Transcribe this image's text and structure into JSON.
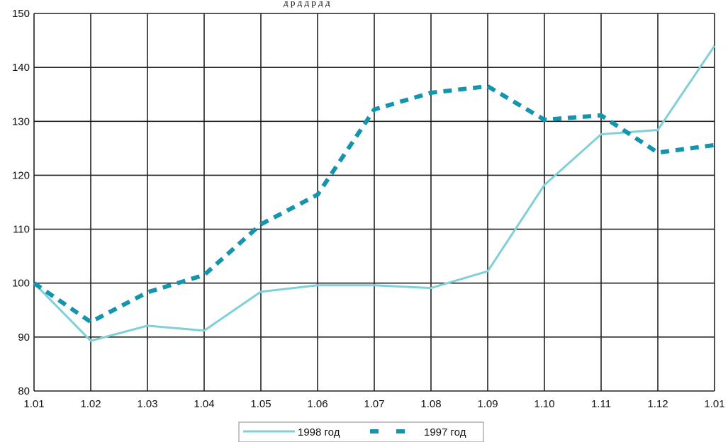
{
  "chart_data": {
    "type": "line",
    "title": "",
    "xlabel": "",
    "ylabel": "",
    "categories": [
      "1.01",
      "1.02",
      "1.03",
      "1.04",
      "1.05",
      "1.06",
      "1.07",
      "1.08",
      "1.09",
      "1.10",
      "1.11",
      "1.12",
      "1.01"
    ],
    "ylim": [
      80,
      150
    ],
    "yticks": [
      "80",
      "90",
      "100",
      "110",
      "120",
      "130",
      "140",
      "150"
    ],
    "grid": true,
    "legend_position": "bottom-center",
    "series": [
      {
        "name": "1998 год",
        "style": "solid",
        "color": "#7fd0d8",
        "values": [
          100,
          89.3,
          92.1,
          91.2,
          98.4,
          99.6,
          99.6,
          99.1,
          102.2,
          118.2,
          127.6,
          128.4,
          144.0
        ]
      },
      {
        "name": "1997 год",
        "style": "dashed",
        "color": "#1595ad",
        "values": [
          100,
          92.8,
          98.3,
          101.5,
          110.9,
          116.4,
          132.2,
          135.3,
          136.5,
          130.3,
          131.1,
          124.2,
          125.6
        ]
      }
    ]
  },
  "partial_top_text": "д                    р  д                      д р д                 д"
}
